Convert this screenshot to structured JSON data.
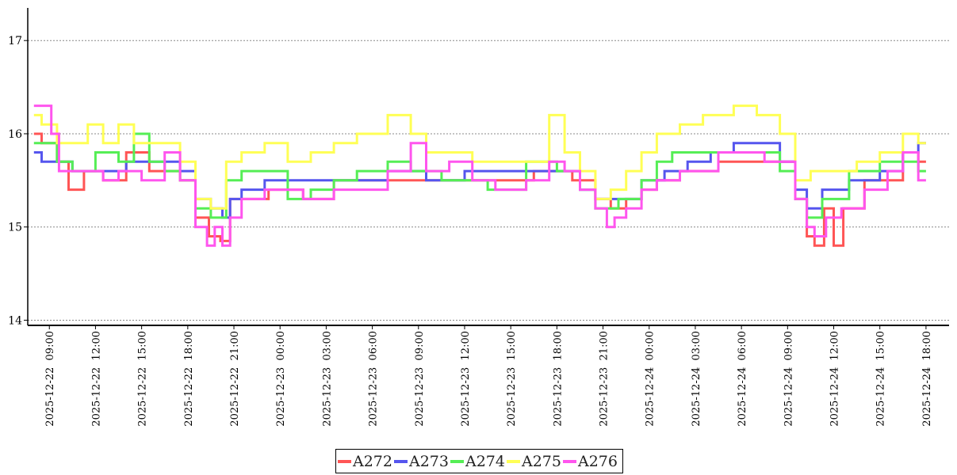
{
  "chart_data": {
    "type": "line",
    "title": "",
    "xlabel": "",
    "ylabel": "",
    "ylim": [
      13.97,
      17.35
    ],
    "yticks": [
      14,
      15,
      16,
      17
    ],
    "grid": "horizontal-dotted",
    "legend_position": "bottom-center",
    "x_range": [
      "2025-12-22 07:45",
      "2025-12-24 19:30"
    ],
    "xticks": [
      "2025-12-22 09:00",
      "2025-12-22 12:00",
      "2025-12-22 15:00",
      "2025-12-22 18:00",
      "2025-12-22 21:00",
      "2025-12-23 00:00",
      "2025-12-23 03:00",
      "2025-12-23 06:00",
      "2025-12-23 09:00",
      "2025-12-23 12:00",
      "2025-12-23 15:00",
      "2025-12-23 18:00",
      "2025-12-23 21:00",
      "2025-12-24 00:00",
      "2025-12-24 03:00",
      "2025-12-24 06:00",
      "2025-12-24 09:00",
      "2025-12-24 12:00",
      "2025-12-24 15:00",
      "2025-12-24 18:00"
    ],
    "series": [
      {
        "name": "A272",
        "color": "#ff5555",
        "points": [
          [
            "2025-12-22 08:00",
            16.0
          ],
          [
            "2025-12-22 09:00",
            15.9
          ],
          [
            "2025-12-22 10:00",
            15.7
          ],
          [
            "2025-12-22 10:30",
            15.4
          ],
          [
            "2025-12-22 12:00",
            15.6
          ],
          [
            "2025-12-22 13:00",
            15.5
          ],
          [
            "2025-12-22 15:00",
            15.8
          ],
          [
            "2025-12-22 16:00",
            15.6
          ],
          [
            "2025-12-22 17:00",
            15.6
          ],
          [
            "2025-12-22 18:00",
            15.5
          ],
          [
            "2025-12-22 19:00",
            15.1
          ],
          [
            "2025-12-22 19:45",
            14.9
          ],
          [
            "2025-12-22 20:30",
            14.85
          ],
          [
            "2025-12-22 21:00",
            15.3
          ],
          [
            "2025-12-22 22:30",
            15.3
          ],
          [
            "2025-12-23 00:00",
            15.4
          ],
          [
            "2025-12-23 03:00",
            15.3
          ],
          [
            "2025-12-23 04:00",
            15.5
          ],
          [
            "2025-12-23 06:00",
            15.5
          ],
          [
            "2025-12-23 09:00",
            15.5
          ],
          [
            "2025-12-23 12:00",
            15.5
          ],
          [
            "2025-12-23 15:00",
            15.5
          ],
          [
            "2025-12-23 18:00",
            15.6
          ],
          [
            "2025-12-23 20:00",
            15.5
          ],
          [
            "2025-12-23 21:00",
            15.3
          ],
          [
            "2025-12-23 22:00",
            15.2
          ],
          [
            "2025-12-23 23:00",
            15.3
          ],
          [
            "2025-12-24 00:00",
            15.4
          ],
          [
            "2025-12-24 01:00",
            15.5
          ],
          [
            "2025-12-24 03:00",
            15.6
          ],
          [
            "2025-12-24 06:00",
            15.7
          ],
          [
            "2025-12-24 09:00",
            15.7
          ],
          [
            "2025-12-24 10:00",
            15.3
          ],
          [
            "2025-12-24 10:30",
            14.9
          ],
          [
            "2025-12-24 11:00",
            14.8
          ],
          [
            "2025-12-24 11:45",
            15.2
          ],
          [
            "2025-12-24 12:15",
            14.8
          ],
          [
            "2025-12-24 13:00",
            15.2
          ],
          [
            "2025-12-24 15:00",
            15.5
          ],
          [
            "2025-12-24 16:00",
            15.5
          ],
          [
            "2025-12-24 17:00",
            15.8
          ],
          [
            "2025-12-24 18:00",
            15.7
          ]
        ]
      },
      {
        "name": "A273",
        "color": "#5555ee",
        "points": [
          [
            "2025-12-22 08:00",
            15.8
          ],
          [
            "2025-12-22 09:00",
            15.7
          ],
          [
            "2025-12-22 10:00",
            15.7
          ],
          [
            "2025-12-22 11:00",
            15.6
          ],
          [
            "2025-12-22 13:00",
            15.6
          ],
          [
            "2025-12-22 15:00",
            15.7
          ],
          [
            "2025-12-22 17:00",
            15.7
          ],
          [
            "2025-12-22 18:00",
            15.6
          ],
          [
            "2025-12-22 19:00",
            15.3
          ],
          [
            "2025-12-22 20:00",
            15.2
          ],
          [
            "2025-12-22 20:30",
            15.1
          ],
          [
            "2025-12-22 21:00",
            15.3
          ],
          [
            "2025-12-22 22:00",
            15.4
          ],
          [
            "2025-12-23 00:00",
            15.5
          ],
          [
            "2025-12-23 03:00",
            15.5
          ],
          [
            "2025-12-23 06:00",
            15.5
          ],
          [
            "2025-12-23 08:00",
            15.6
          ],
          [
            "2025-12-23 11:00",
            15.5
          ],
          [
            "2025-12-23 13:00",
            15.6
          ],
          [
            "2025-12-23 15:00",
            15.6
          ],
          [
            "2025-12-23 17:00",
            15.6
          ],
          [
            "2025-12-23 19:00",
            15.6
          ],
          [
            "2025-12-23 20:00",
            15.4
          ],
          [
            "2025-12-23 21:00",
            15.3
          ],
          [
            "2025-12-23 23:00",
            15.3
          ],
          [
            "2025-12-24 00:00",
            15.5
          ],
          [
            "2025-12-24 02:00",
            15.6
          ],
          [
            "2025-12-24 03:00",
            15.7
          ],
          [
            "2025-12-24 05:00",
            15.8
          ],
          [
            "2025-12-24 06:00",
            15.9
          ],
          [
            "2025-12-24 08:00",
            15.9
          ],
          [
            "2025-12-24 09:00",
            15.7
          ],
          [
            "2025-12-24 10:00",
            15.4
          ],
          [
            "2025-12-24 10:30",
            15.2
          ],
          [
            "2025-12-24 12:00",
            15.4
          ],
          [
            "2025-12-24 14:00",
            15.5
          ],
          [
            "2025-12-24 16:00",
            15.6
          ],
          [
            "2025-12-24 17:00",
            15.8
          ],
          [
            "2025-12-24 18:00",
            15.9
          ]
        ]
      },
      {
        "name": "A274",
        "color": "#55ee55",
        "points": [
          [
            "2025-12-22 08:00",
            15.9
          ],
          [
            "2025-12-22 09:00",
            15.9
          ],
          [
            "2025-12-22 10:00",
            15.7
          ],
          [
            "2025-12-22 11:00",
            15.6
          ],
          [
            "2025-12-22 13:00",
            15.8
          ],
          [
            "2025-12-22 14:00",
            15.7
          ],
          [
            "2025-12-22 15:00",
            16.0
          ],
          [
            "2025-12-22 16:00",
            15.7
          ],
          [
            "2025-12-22 17:00",
            15.6
          ],
          [
            "2025-12-22 18:00",
            15.5
          ],
          [
            "2025-12-22 19:00",
            15.2
          ],
          [
            "2025-12-22 20:00",
            15.1
          ],
          [
            "2025-12-22 21:00",
            15.5
          ],
          [
            "2025-12-22 22:00",
            15.6
          ],
          [
            "2025-12-23 00:00",
            15.6
          ],
          [
            "2025-12-23 01:00",
            15.3
          ],
          [
            "2025-12-23 03:00",
            15.4
          ],
          [
            "2025-12-23 04:00",
            15.5
          ],
          [
            "2025-12-23 06:00",
            15.6
          ],
          [
            "2025-12-23 08:00",
            15.7
          ],
          [
            "2025-12-23 09:00",
            15.6
          ],
          [
            "2025-12-23 12:00",
            15.5
          ],
          [
            "2025-12-23 15:00",
            15.4
          ],
          [
            "2025-12-23 17:00",
            15.7
          ],
          [
            "2025-12-23 19:00",
            15.6
          ],
          [
            "2025-12-23 20:00",
            15.4
          ],
          [
            "2025-12-23 21:00",
            15.2
          ],
          [
            "2025-12-23 23:00",
            15.3
          ],
          [
            "2025-12-24 00:00",
            15.5
          ],
          [
            "2025-12-24 01:00",
            15.7
          ],
          [
            "2025-12-24 02:00",
            15.8
          ],
          [
            "2025-12-24 05:00",
            15.8
          ],
          [
            "2025-12-24 06:00",
            15.8
          ],
          [
            "2025-12-24 08:00",
            15.8
          ],
          [
            "2025-12-24 09:00",
            15.6
          ],
          [
            "2025-12-24 10:00",
            15.3
          ],
          [
            "2025-12-24 10:30",
            15.1
          ],
          [
            "2025-12-24 12:00",
            15.3
          ],
          [
            "2025-12-24 14:00",
            15.6
          ],
          [
            "2025-12-24 16:00",
            15.7
          ],
          [
            "2025-12-24 17:00",
            15.7
          ],
          [
            "2025-12-24 18:00",
            15.6
          ]
        ]
      },
      {
        "name": "A275",
        "color": "#ffff55",
        "points": [
          [
            "2025-12-22 08:00",
            16.2
          ],
          [
            "2025-12-22 09:00",
            16.1
          ],
          [
            "2025-12-22 10:00",
            15.9
          ],
          [
            "2025-12-22 11:00",
            15.9
          ],
          [
            "2025-12-22 12:00",
            16.1
          ],
          [
            "2025-12-22 13:00",
            15.9
          ],
          [
            "2025-12-22 14:00",
            16.1
          ],
          [
            "2025-12-22 15:00",
            15.9
          ],
          [
            "2025-12-22 16:00",
            15.9
          ],
          [
            "2025-12-22 17:00",
            15.9
          ],
          [
            "2025-12-22 18:00",
            15.7
          ],
          [
            "2025-12-22 19:00",
            15.3
          ],
          [
            "2025-12-22 20:00",
            15.2
          ],
          [
            "2025-12-22 21:00",
            15.7
          ],
          [
            "2025-12-22 22:00",
            15.8
          ],
          [
            "2025-12-23 00:00",
            15.9
          ],
          [
            "2025-12-23 01:00",
            15.7
          ],
          [
            "2025-12-23 03:00",
            15.8
          ],
          [
            "2025-12-23 04:00",
            15.9
          ],
          [
            "2025-12-23 06:00",
            16.0
          ],
          [
            "2025-12-23 08:00",
            16.2
          ],
          [
            "2025-12-23 09:00",
            16.0
          ],
          [
            "2025-12-23 10:00",
            15.8
          ],
          [
            "2025-12-23 12:00",
            15.8
          ],
          [
            "2025-12-23 13:00",
            15.7
          ],
          [
            "2025-12-23 15:00",
            15.7
          ],
          [
            "2025-12-23 17:00",
            15.7
          ],
          [
            "2025-12-23 18:00",
            16.2
          ],
          [
            "2025-12-23 19:00",
            15.8
          ],
          [
            "2025-12-23 20:00",
            15.6
          ],
          [
            "2025-12-23 21:00",
            15.3
          ],
          [
            "2025-12-23 22:00",
            15.4
          ],
          [
            "2025-12-23 23:00",
            15.6
          ],
          [
            "2025-12-24 00:00",
            15.8
          ],
          [
            "2025-12-24 01:00",
            16.0
          ],
          [
            "2025-12-24 03:00",
            16.1
          ],
          [
            "2025-12-24 04:00",
            16.2
          ],
          [
            "2025-12-24 05:00",
            16.2
          ],
          [
            "2025-12-24 06:00",
            16.3
          ],
          [
            "2025-12-24 08:00",
            16.2
          ],
          [
            "2025-12-24 09:00",
            16.0
          ],
          [
            "2025-12-24 10:00",
            15.5
          ],
          [
            "2025-12-24 11:00",
            15.6
          ],
          [
            "2025-12-24 13:00",
            15.6
          ],
          [
            "2025-12-24 14:00",
            15.7
          ],
          [
            "2025-12-24 16:00",
            15.8
          ],
          [
            "2025-12-24 17:00",
            16.0
          ],
          [
            "2025-12-24 18:00",
            15.9
          ]
        ]
      },
      {
        "name": "A276",
        "color": "#ff55ee",
        "points": [
          [
            "2025-12-22 08:00",
            16.3
          ],
          [
            "2025-12-22 09:00",
            16.3
          ],
          [
            "2025-12-22 09:15",
            16.0
          ],
          [
            "2025-12-22 10:00",
            15.6
          ],
          [
            "2025-12-22 12:00",
            15.6
          ],
          [
            "2025-12-22 13:00",
            15.5
          ],
          [
            "2025-12-22 14:00",
            15.6
          ],
          [
            "2025-12-22 16:00",
            15.5
          ],
          [
            "2025-12-22 17:00",
            15.8
          ],
          [
            "2025-12-22 18:00",
            15.5
          ],
          [
            "2025-12-22 19:00",
            15.0
          ],
          [
            "2025-12-22 19:30",
            14.8
          ],
          [
            "2025-12-22 20:00",
            15.0
          ],
          [
            "2025-12-22 20:30",
            14.8
          ],
          [
            "2025-12-22 21:00",
            15.1
          ],
          [
            "2025-12-22 22:00",
            15.3
          ],
          [
            "2025-12-23 00:00",
            15.4
          ],
          [
            "2025-12-23 03:00",
            15.3
          ],
          [
            "2025-12-23 04:00",
            15.4
          ],
          [
            "2025-12-23 06:00",
            15.4
          ],
          [
            "2025-12-23 08:00",
            15.6
          ],
          [
            "2025-12-23 09:00",
            15.9
          ],
          [
            "2025-12-23 10:00",
            15.6
          ],
          [
            "2025-12-23 12:00",
            15.7
          ],
          [
            "2025-12-23 13:00",
            15.5
          ],
          [
            "2025-12-23 15:00",
            15.4
          ],
          [
            "2025-12-23 17:00",
            15.5
          ],
          [
            "2025-12-23 18:00",
            15.7
          ],
          [
            "2025-12-23 19:00",
            15.6
          ],
          [
            "2025-12-23 20:00",
            15.4
          ],
          [
            "2025-12-23 21:00",
            15.2
          ],
          [
            "2025-12-23 21:30",
            15.0
          ],
          [
            "2025-12-23 22:00",
            15.1
          ],
          [
            "2025-12-23 23:00",
            15.2
          ],
          [
            "2025-12-24 00:00",
            15.4
          ],
          [
            "2025-12-24 01:00",
            15.5
          ],
          [
            "2025-12-24 03:00",
            15.6
          ],
          [
            "2025-12-24 06:00",
            15.8
          ],
          [
            "2025-12-24 09:00",
            15.7
          ],
          [
            "2025-12-24 10:00",
            15.3
          ],
          [
            "2025-12-24 10:30",
            15.0
          ],
          [
            "2025-12-24 11:00",
            14.9
          ],
          [
            "2025-12-24 12:00",
            15.1
          ],
          [
            "2025-12-24 13:00",
            15.2
          ],
          [
            "2025-12-24 15:00",
            15.4
          ],
          [
            "2025-12-24 16:00",
            15.6
          ],
          [
            "2025-12-24 17:00",
            15.8
          ],
          [
            "2025-12-24 18:00",
            15.5
          ]
        ]
      }
    ]
  }
}
